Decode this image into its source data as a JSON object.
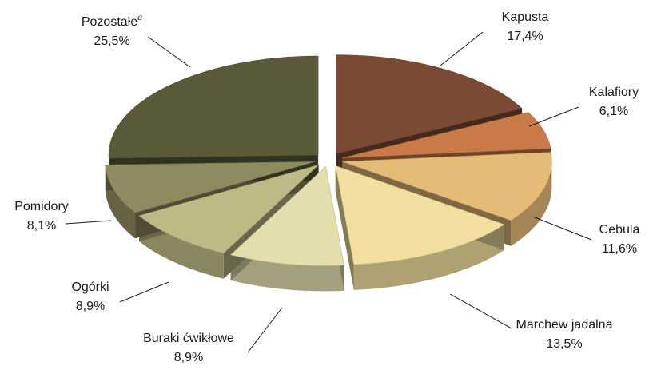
{
  "chart_data": {
    "type": "pie",
    "title": "",
    "categories": [
      "Kapusta",
      "Kalafiory",
      "Cebula",
      "Marchew jadalna",
      "Buraki ćwikłowe",
      "Ogórki",
      "Pomidory",
      "Pozostałe"
    ],
    "values": [
      17.4,
      6.1,
      11.6,
      13.5,
      8.9,
      8.9,
      8.1,
      25.5
    ],
    "value_labels": [
      "17,4%",
      "6,1%",
      "11,6%",
      "13,5%",
      "8,9%",
      "8,9%",
      "8,1%",
      "25,5%"
    ],
    "footnote_marks": [
      "",
      "",
      "",
      "",
      "",
      "",
      "",
      "a"
    ],
    "colors": [
      "#7b4a35",
      "#c97a48",
      "#e5bb78",
      "#f1df9f",
      "#e4deaf",
      "#bdbb85",
      "#8e8b60",
      "#5a5a3a"
    ],
    "style": "3d-exploded"
  }
}
